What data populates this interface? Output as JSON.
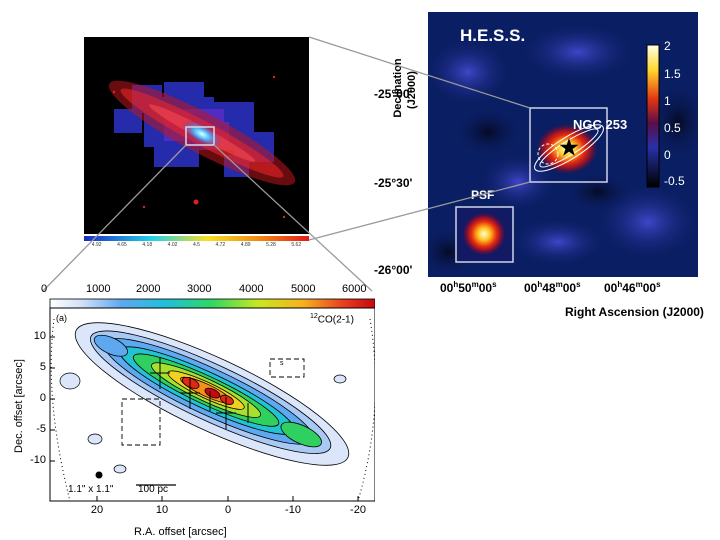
{
  "hess": {
    "title": "H.E.S.S.",
    "source_label": "NGC 253",
    "psf_label": "PSF",
    "dec_axis_label_line1": "Declination",
    "dec_axis_label_line2": "(J2000)",
    "ra_axis_label": "Right Ascension (J2000)",
    "dec_ticks": [
      "-25°00'",
      "-25°30'",
      "-26°00'"
    ],
    "ra_ticks": [
      {
        "h": "00",
        "m": "50",
        "s": "00"
      },
      {
        "h": "00",
        "m": "48",
        "s": "00"
      },
      {
        "h": "00",
        "m": "46",
        "s": "00"
      }
    ],
    "colorbar_ticks": [
      "2",
      "1.5",
      "1",
      "0.5",
      "0",
      "-0.5"
    ]
  },
  "galaxy": {
    "axis_ticks": [
      "4.92",
      "4.65",
      "4.18",
      "4.02",
      "4.5",
      "4.72",
      "4.89",
      "5.28",
      "5.62"
    ]
  },
  "co_map": {
    "line_label": "CO(2-1)",
    "line_superscript": "12",
    "panel_label": "(a)",
    "colorbar_ticks": [
      "0",
      "1000",
      "2000",
      "3000",
      "4000",
      "5000",
      "6000"
    ],
    "y_ticks": [
      "10",
      "5",
      "0",
      "-5",
      "-10"
    ],
    "x_ticks": [
      "20",
      "10",
      "0",
      "-10",
      "-20"
    ],
    "ylabel": "Dec. offset [arcsec]",
    "xlabel": "R.A. offset [arcsec]",
    "beam_label": "1.1\" x 1.1\"",
    "scale_label": "100 pc",
    "box_tag": "s"
  }
}
